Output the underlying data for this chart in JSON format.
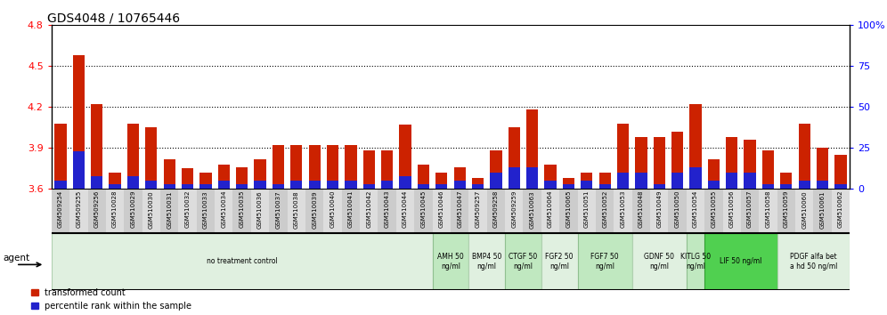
{
  "title": "GDS4048 / 10765446",
  "ylim_left": [
    3.6,
    4.8
  ],
  "ylim_right": [
    0,
    100
  ],
  "yticks_left": [
    3.6,
    3.9,
    4.2,
    4.5,
    4.8
  ],
  "yticks_right": [
    0,
    25,
    50,
    75,
    100
  ],
  "samples": [
    "GSM509254",
    "GSM509255",
    "GSM509256",
    "GSM510028",
    "GSM510029",
    "GSM510030",
    "GSM510031",
    "GSM510032",
    "GSM510033",
    "GSM510034",
    "GSM510035",
    "GSM510036",
    "GSM510037",
    "GSM510038",
    "GSM510039",
    "GSM510040",
    "GSM510041",
    "GSM510042",
    "GSM510043",
    "GSM510044",
    "GSM510045",
    "GSM510046",
    "GSM510047",
    "GSM509257",
    "GSM509258",
    "GSM509259",
    "GSM510063",
    "GSM510064",
    "GSM510065",
    "GSM510051",
    "GSM510052",
    "GSM510053",
    "GSM510048",
    "GSM510049",
    "GSM510050",
    "GSM510054",
    "GSM510055",
    "GSM510056",
    "GSM510057",
    "GSM510058",
    "GSM510059",
    "GSM510060",
    "GSM510061",
    "GSM510062"
  ],
  "red_values": [
    4.08,
    4.58,
    4.22,
    3.72,
    4.08,
    4.05,
    3.82,
    3.75,
    3.72,
    3.78,
    3.76,
    3.82,
    3.92,
    3.92,
    3.92,
    3.92,
    3.92,
    3.88,
    3.88,
    4.07,
    3.78,
    3.72,
    3.76,
    3.68,
    3.88,
    4.05,
    4.18,
    3.78,
    3.68,
    3.72,
    3.72,
    4.08,
    3.98,
    3.98,
    4.02,
    4.22,
    3.82,
    3.98,
    3.96,
    3.88,
    3.72,
    4.08,
    3.9,
    3.85
  ],
  "blue_percentile": [
    5,
    23,
    8,
    3,
    8,
    5,
    3,
    3,
    3,
    5,
    3,
    5,
    3,
    5,
    5,
    5,
    5,
    3,
    5,
    8,
    3,
    3,
    5,
    3,
    10,
    13,
    13,
    5,
    3,
    5,
    3,
    10,
    10,
    3,
    10,
    13,
    5,
    10,
    10,
    3,
    3,
    5,
    5,
    3
  ],
  "agent_groups": [
    {
      "label": "no treatment control",
      "start": 0,
      "end": 21,
      "color": "#e0f0e0",
      "border": "#b0d0b0"
    },
    {
      "label": "AMH 50\nng/ml",
      "start": 21,
      "end": 23,
      "color": "#c0e8c0",
      "border": "#90c090"
    },
    {
      "label": "BMP4 50\nng/ml",
      "start": 23,
      "end": 25,
      "color": "#e0f0e0",
      "border": "#b0d0b0"
    },
    {
      "label": "CTGF 50\nng/ml",
      "start": 25,
      "end": 27,
      "color": "#c0e8c0",
      "border": "#90c090"
    },
    {
      "label": "FGF2 50\nng/ml",
      "start": 27,
      "end": 29,
      "color": "#e0f0e0",
      "border": "#b0d0b0"
    },
    {
      "label": "FGF7 50\nng/ml",
      "start": 29,
      "end": 32,
      "color": "#c0e8c0",
      "border": "#90c090"
    },
    {
      "label": "GDNF 50\nng/ml",
      "start": 32,
      "end": 35,
      "color": "#e0f0e0",
      "border": "#b0d0b0"
    },
    {
      "label": "KITLG 50\nng/ml",
      "start": 35,
      "end": 36,
      "color": "#c0e8c0",
      "border": "#90c090"
    },
    {
      "label": "LIF 50 ng/ml",
      "start": 36,
      "end": 40,
      "color": "#50d050",
      "border": "#30a030"
    },
    {
      "label": "PDGF alfa bet\na hd 50 ng/ml",
      "start": 40,
      "end": 44,
      "color": "#e0f0e0",
      "border": "#b0d0b0"
    }
  ],
  "bar_color_red": "#cc2200",
  "bar_color_blue": "#2222cc",
  "legend_red": "transformed count",
  "legend_blue": "percentile rank within the sample",
  "agent_label": "agent"
}
